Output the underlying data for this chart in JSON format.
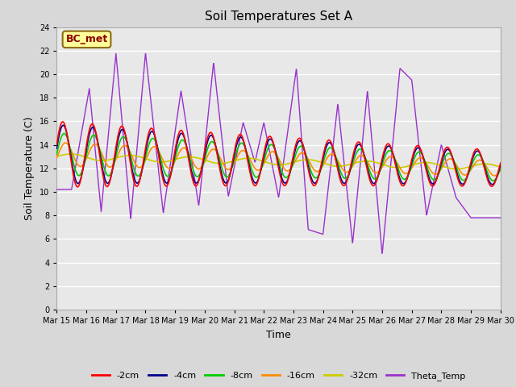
{
  "title": "Soil Temperatures Set A",
  "xlabel": "Time",
  "ylabel": "Soil Temperature (C)",
  "ylim": [
    0,
    24
  ],
  "yticks": [
    0,
    2,
    4,
    6,
    8,
    10,
    12,
    14,
    16,
    18,
    20,
    22,
    24
  ],
  "annotation": "BC_met",
  "annotation_color": "#8B0000",
  "annotation_bg": "#FFFF99",
  "bg_color": "#D8D8D8",
  "plot_bg": "#E8E8E8",
  "series_colors": {
    "-2cm": "#FF0000",
    "-4cm": "#00008B",
    "-8cm": "#00CC00",
    "-16cm": "#FF8C00",
    "-32cm": "#CCCC00",
    "Theta_Temp": "#9932CC"
  },
  "x_labels": [
    "Mar 15",
    "Mar 16",
    "Mar 17",
    "Mar 18",
    "Mar 19",
    "Mar 20",
    "Mar 21",
    "Mar 22",
    "Mar 23",
    "Mar 24",
    "Mar 25",
    "Mar 26",
    "Mar 27",
    "Mar 28",
    "Mar 29",
    "Mar 30"
  ],
  "theta_peaks": [
    {
      "day": 0.5,
      "val": 10.2
    },
    {
      "day": 1.1,
      "val": 18.8
    },
    {
      "day": 1.5,
      "val": 8.3
    },
    {
      "day": 2.0,
      "val": 21.8
    },
    {
      "day": 2.5,
      "val": 7.7
    },
    {
      "day": 3.0,
      "val": 21.8
    },
    {
      "day": 3.6,
      "val": 8.2
    },
    {
      "day": 4.2,
      "val": 18.6
    },
    {
      "day": 4.8,
      "val": 8.8
    },
    {
      "day": 5.3,
      "val": 21.0
    },
    {
      "day": 5.8,
      "val": 9.6
    },
    {
      "day": 6.3,
      "val": 15.9
    },
    {
      "day": 6.7,
      "val": 12.5
    },
    {
      "day": 7.0,
      "val": 15.9
    },
    {
      "day": 7.5,
      "val": 9.5
    },
    {
      "day": 8.1,
      "val": 20.5
    },
    {
      "day": 8.5,
      "val": 6.8
    },
    {
      "day": 9.0,
      "val": 6.4
    },
    {
      "day": 9.5,
      "val": 17.5
    },
    {
      "day": 10.0,
      "val": 5.6
    },
    {
      "day": 10.5,
      "val": 18.6
    },
    {
      "day": 11.0,
      "val": 4.7
    },
    {
      "day": 11.6,
      "val": 20.5
    },
    {
      "day": 12.0,
      "val": 19.5
    },
    {
      "day": 12.5,
      "val": 8.0
    },
    {
      "day": 13.0,
      "val": 14.0
    },
    {
      "day": 13.5,
      "val": 9.5
    },
    {
      "day": 14.0,
      "val": 7.8
    }
  ],
  "num_points": 1500
}
